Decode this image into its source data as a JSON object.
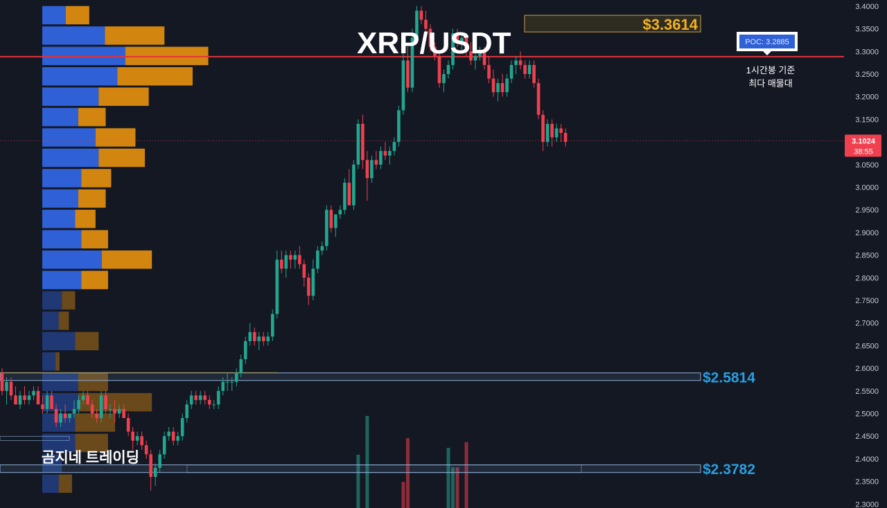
{
  "title": "XRP/USDT",
  "watermark": "곰지네 트레이딩",
  "colors": {
    "background": "#141823",
    "up": "#22a68f",
    "down": "#f0404f",
    "vp_buy": "#2f60d6",
    "vp_sell": "#d3860f",
    "poc_line": "#e3323b",
    "level_box": "#8fb0d8",
    "level_text": "#2a9ee0",
    "high_text": "#f2b21f",
    "price_label": "#f0404f"
  },
  "chart_data": {
    "type": "candlestick",
    "title": "XRP/USDT",
    "y_axis": {
      "side": "right",
      "ylim": [
        2.2913,
        3.4136
      ],
      "ticks": [
        "3.4000",
        "3.3500",
        "3.3000",
        "3.2500",
        "3.2000",
        "3.1500",
        "3.1000",
        "3.0500",
        "3.0000",
        "2.9500",
        "2.9000",
        "2.8500",
        "2.8000",
        "2.7500",
        "2.7000",
        "2.6500",
        "2.6000",
        "2.5500",
        "2.5000",
        "2.4500",
        "2.4000",
        "2.3500",
        "2.3000"
      ]
    },
    "grid": false,
    "current_price": {
      "value": 3.1024,
      "label": "3.1024",
      "countdown": "38:55"
    },
    "poc": {
      "label": "POC: 3.2885",
      "value": 3.2885,
      "note_line1": "1시간봉 기준",
      "note_line2": "최다 매물대"
    },
    "levels": [
      {
        "label": "$3.3614",
        "price": 3.3614,
        "kind": "high"
      },
      {
        "label": "$2.5814",
        "price": 2.5814,
        "kind": "support"
      },
      {
        "label": "$2.3782",
        "price": 2.3782,
        "kind": "support"
      }
    ],
    "volume_profile": {
      "bins": [
        {
          "price": 3.38,
          "buy": 3.0,
          "sell": 3.0
        },
        {
          "price": 3.335,
          "buy": 8.0,
          "sell": 7.6
        },
        {
          "price": 3.29,
          "buy": 10.6,
          "sell": 10.6
        },
        {
          "price": 3.245,
          "buy": 9.6,
          "sell": 9.6
        },
        {
          "price": 3.2,
          "buy": 7.2,
          "sell": 6.4
        },
        {
          "price": 3.155,
          "buy": 4.6,
          "sell": 3.5
        },
        {
          "price": 3.11,
          "buy": 6.8,
          "sell": 5.1
        },
        {
          "price": 3.065,
          "buy": 7.2,
          "sell": 5.9
        },
        {
          "price": 3.02,
          "buy": 5.0,
          "sell": 3.8
        },
        {
          "price": 2.975,
          "buy": 4.6,
          "sell": 3.5
        },
        {
          "price": 2.93,
          "buy": 4.2,
          "sell": 2.6
        },
        {
          "price": 2.885,
          "buy": 5.0,
          "sell": 3.4
        },
        {
          "price": 2.84,
          "buy": 7.6,
          "sell": 6.4
        },
        {
          "price": 2.795,
          "buy": 5.0,
          "sell": 3.4
        },
        {
          "price": 2.75,
          "buy": 2.5,
          "sell": 1.7
        },
        {
          "price": 2.705,
          "buy": 2.1,
          "sell": 1.3
        },
        {
          "price": 2.66,
          "buy": 4.2,
          "sell": 3.0
        },
        {
          "price": 2.615,
          "buy": 1.7,
          "sell": 0.5
        },
        {
          "price": 2.57,
          "buy": 4.6,
          "sell": 3.8
        },
        {
          "price": 2.525,
          "buy": 4.6,
          "sell": 9.4
        },
        {
          "price": 2.48,
          "buy": 4.2,
          "sell": 5.1
        },
        {
          "price": 2.435,
          "buy": 4.2,
          "sell": 4.2
        },
        {
          "price": 2.39,
          "buy": 2.5,
          "sell": 0.0
        },
        {
          "price": 2.345,
          "buy": 2.1,
          "sell": 1.7
        }
      ]
    },
    "candles": [
      [
        2.59,
        2.6,
        2.54,
        2.55
      ],
      [
        2.55,
        2.58,
        2.52,
        2.57
      ],
      [
        2.57,
        2.58,
        2.53,
        2.54
      ],
      [
        2.54,
        2.56,
        2.52,
        2.52
      ],
      [
        2.52,
        2.55,
        2.51,
        2.54
      ],
      [
        2.54,
        2.56,
        2.52,
        2.53
      ],
      [
        2.53,
        2.55,
        2.52,
        2.54
      ],
      [
        2.54,
        2.56,
        2.53,
        2.55
      ],
      [
        2.55,
        2.56,
        2.52,
        2.52
      ],
      [
        2.52,
        2.54,
        2.5,
        2.51
      ],
      [
        2.51,
        2.55,
        2.5,
        2.54
      ],
      [
        2.54,
        2.55,
        2.51,
        2.51
      ],
      [
        2.51,
        2.52,
        2.47,
        2.48
      ],
      [
        2.48,
        2.51,
        2.47,
        2.5
      ],
      [
        2.5,
        2.52,
        2.48,
        2.49
      ],
      [
        2.49,
        2.5,
        2.48,
        2.5
      ],
      [
        2.5,
        2.53,
        2.49,
        2.51
      ],
      [
        2.51,
        2.54,
        2.5,
        2.53
      ],
      [
        2.53,
        2.55,
        2.52,
        2.54
      ],
      [
        2.54,
        2.55,
        2.52,
        2.52
      ],
      [
        2.52,
        2.53,
        2.49,
        2.5
      ],
      [
        2.5,
        2.51,
        2.48,
        2.49
      ],
      [
        2.49,
        2.55,
        2.48,
        2.54
      ],
      [
        2.54,
        2.55,
        2.5,
        2.51
      ],
      [
        2.51,
        2.52,
        2.49,
        2.51
      ],
      [
        2.51,
        2.53,
        2.48,
        2.5
      ],
      [
        2.5,
        2.52,
        2.49,
        2.51
      ],
      [
        2.51,
        2.52,
        2.49,
        2.49
      ],
      [
        2.49,
        2.5,
        2.45,
        2.46
      ],
      [
        2.46,
        2.47,
        2.42,
        2.44
      ],
      [
        2.44,
        2.46,
        2.43,
        2.45
      ],
      [
        2.45,
        2.46,
        2.42,
        2.43
      ],
      [
        2.43,
        2.44,
        2.4,
        2.41
      ],
      [
        2.41,
        2.42,
        2.33,
        2.36
      ],
      [
        2.36,
        2.39,
        2.34,
        2.38
      ],
      [
        2.38,
        2.42,
        2.37,
        2.41
      ],
      [
        2.41,
        2.46,
        2.4,
        2.45
      ],
      [
        2.45,
        2.47,
        2.44,
        2.46
      ],
      [
        2.46,
        2.47,
        2.43,
        2.44
      ],
      [
        2.44,
        2.46,
        2.43,
        2.45
      ],
      [
        2.45,
        2.5,
        2.44,
        2.49
      ],
      [
        2.49,
        2.53,
        2.48,
        2.52
      ],
      [
        2.52,
        2.55,
        2.51,
        2.54
      ],
      [
        2.54,
        2.55,
        2.52,
        2.53
      ],
      [
        2.53,
        2.55,
        2.52,
        2.54
      ],
      [
        2.54,
        2.55,
        2.52,
        2.53
      ],
      [
        2.53,
        2.54,
        2.51,
        2.52
      ],
      [
        2.52,
        2.53,
        2.51,
        2.52
      ],
      [
        2.52,
        2.56,
        2.51,
        2.55
      ],
      [
        2.55,
        2.58,
        2.54,
        2.57
      ],
      [
        2.57,
        2.59,
        2.55,
        2.57
      ],
      [
        2.57,
        2.58,
        2.55,
        2.57
      ],
      [
        2.57,
        2.6,
        2.56,
        2.59
      ],
      [
        2.59,
        2.63,
        2.58,
        2.62
      ],
      [
        2.62,
        2.67,
        2.61,
        2.66
      ],
      [
        2.66,
        2.7,
        2.65,
        2.68
      ],
      [
        2.68,
        2.69,
        2.65,
        2.66
      ],
      [
        2.66,
        2.68,
        2.64,
        2.67
      ],
      [
        2.67,
        2.68,
        2.65,
        2.66
      ],
      [
        2.66,
        2.68,
        2.65,
        2.67
      ],
      [
        2.67,
        2.73,
        2.66,
        2.72
      ],
      [
        2.72,
        2.86,
        2.71,
        2.84
      ],
      [
        2.84,
        2.86,
        2.81,
        2.82
      ],
      [
        2.82,
        2.86,
        2.8,
        2.85
      ],
      [
        2.85,
        2.86,
        2.82,
        2.84
      ],
      [
        2.84,
        2.86,
        2.82,
        2.85
      ],
      [
        2.85,
        2.87,
        2.82,
        2.83
      ],
      [
        2.83,
        2.84,
        2.78,
        2.8
      ],
      [
        2.8,
        2.81,
        2.74,
        2.76
      ],
      [
        2.76,
        2.84,
        2.75,
        2.82
      ],
      [
        2.82,
        2.87,
        2.81,
        2.86
      ],
      [
        2.86,
        2.88,
        2.85,
        2.87
      ],
      [
        2.87,
        2.96,
        2.86,
        2.95
      ],
      [
        2.95,
        2.96,
        2.9,
        2.91
      ],
      [
        2.91,
        2.93,
        2.89,
        2.94
      ],
      [
        2.94,
        2.96,
        2.93,
        2.95
      ],
      [
        2.95,
        3.02,
        2.94,
        3.01
      ],
      [
        3.01,
        3.04,
        2.96,
        2.96
      ],
      [
        2.96,
        3.06,
        2.95,
        3.05
      ],
      [
        3.05,
        3.15,
        3.04,
        3.14
      ],
      [
        3.14,
        3.16,
        3.04,
        3.06
      ],
      [
        3.06,
        3.08,
        2.97,
        3.02
      ],
      [
        3.02,
        3.07,
        3.01,
        3.06
      ],
      [
        3.06,
        3.08,
        3.04,
        3.05
      ],
      [
        3.05,
        3.09,
        3.04,
        3.08
      ],
      [
        3.08,
        3.1,
        3.06,
        3.07
      ],
      [
        3.07,
        3.09,
        3.05,
        3.08
      ],
      [
        3.08,
        3.11,
        3.07,
        3.1
      ],
      [
        3.1,
        3.18,
        3.09,
        3.17
      ],
      [
        3.17,
        3.3,
        3.16,
        3.28
      ],
      [
        3.28,
        3.31,
        3.21,
        3.22
      ],
      [
        3.22,
        3.35,
        3.21,
        3.33
      ],
      [
        3.33,
        3.4,
        3.32,
        3.39
      ],
      [
        3.39,
        3.4,
        3.36,
        3.37
      ],
      [
        3.37,
        3.39,
        3.34,
        3.35
      ],
      [
        3.35,
        3.36,
        3.3,
        3.31
      ],
      [
        3.31,
        3.32,
        3.28,
        3.29
      ],
      [
        3.29,
        3.3,
        3.22,
        3.23
      ],
      [
        3.23,
        3.26,
        3.21,
        3.25
      ],
      [
        3.25,
        3.28,
        3.24,
        3.27
      ],
      [
        3.27,
        3.35,
        3.26,
        3.34
      ],
      [
        3.34,
        3.35,
        3.31,
        3.32
      ],
      [
        3.32,
        3.34,
        3.3,
        3.33
      ],
      [
        3.33,
        3.34,
        3.29,
        3.3
      ],
      [
        3.3,
        3.32,
        3.27,
        3.28
      ],
      [
        3.28,
        3.3,
        3.26,
        3.29
      ],
      [
        3.29,
        3.31,
        3.28,
        3.3
      ],
      [
        3.3,
        3.31,
        3.26,
        3.27
      ],
      [
        3.27,
        3.29,
        3.23,
        3.24
      ],
      [
        3.24,
        3.26,
        3.2,
        3.21
      ],
      [
        3.21,
        3.24,
        3.19,
        3.23
      ],
      [
        3.23,
        3.25,
        3.2,
        3.21
      ],
      [
        3.21,
        3.25,
        3.2,
        3.24
      ],
      [
        3.24,
        3.28,
        3.23,
        3.27
      ],
      [
        3.27,
        3.29,
        3.25,
        3.28
      ],
      [
        3.28,
        3.3,
        3.26,
        3.27
      ],
      [
        3.27,
        3.28,
        3.24,
        3.25
      ],
      [
        3.25,
        3.28,
        3.24,
        3.27
      ],
      [
        3.27,
        3.28,
        3.22,
        3.23
      ],
      [
        3.23,
        3.24,
        3.15,
        3.16
      ],
      [
        3.16,
        3.17,
        3.08,
        3.1
      ],
      [
        3.1,
        3.15,
        3.09,
        3.14
      ],
      [
        3.14,
        3.15,
        3.09,
        3.11
      ],
      [
        3.11,
        3.14,
        3.1,
        3.13
      ],
      [
        3.13,
        3.14,
        3.1,
        3.12
      ],
      [
        3.12,
        3.13,
        3.09,
        3.1
      ]
    ],
    "volume": [
      {
        "candle": 79,
        "value": 0.55,
        "dir": "up"
      },
      {
        "candle": 81,
        "value": 0.95,
        "dir": "up"
      },
      {
        "candle": 89,
        "value": 0.27,
        "dir": "down"
      },
      {
        "candle": 90,
        "value": 0.72,
        "dir": "down"
      },
      {
        "candle": 99,
        "value": 0.62,
        "dir": "up"
      },
      {
        "candle": 100,
        "value": 0.42,
        "dir": "up"
      },
      {
        "candle": 101,
        "value": 0.42,
        "dir": "down"
      },
      {
        "candle": 103,
        "value": 0.68,
        "dir": "down"
      }
    ]
  }
}
